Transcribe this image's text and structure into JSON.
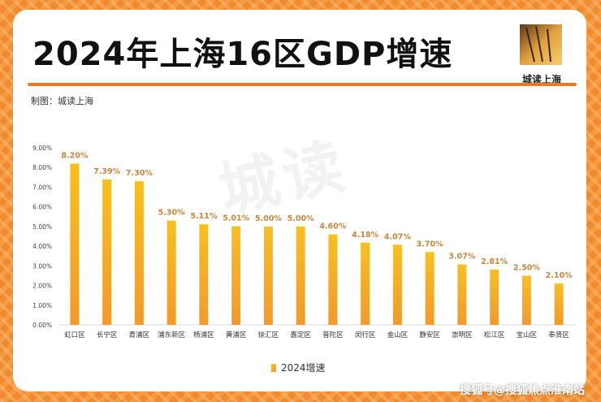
{
  "title": "2024年上海16区GDP增速",
  "credit": "制图：城读上海",
  "logo_text": "城读上海",
  "watermark": "城读",
  "footer": "搜狐号@搜狐焦点淮南站",
  "colors": {
    "border": "#f08a2c",
    "rule": "#e8782a",
    "bar_top": "#f6c020",
    "bar_bottom": "#f29a2c",
    "label": "#c8863a"
  },
  "chart_data": {
    "type": "bar",
    "categories": [
      "虹口区",
      "长宁区",
      "青浦区",
      "浦东新区",
      "杨浦区",
      "黄浦区",
      "徐汇区",
      "嘉定区",
      "普陀区",
      "闵行区",
      "金山区",
      "静安区",
      "崇明区",
      "松江区",
      "宝山区",
      "奉贤区"
    ],
    "series": [
      {
        "name": "2024增速",
        "values": [
          8.2,
          7.39,
          7.3,
          5.3,
          5.11,
          5.01,
          5.0,
          5.0,
          4.6,
          4.18,
          4.07,
          3.7,
          3.07,
          2.81,
          2.5,
          2.1
        ],
        "labels": [
          "8.20%",
          "7.39%",
          "7.30%",
          "5.30%",
          "5.11%",
          "5.01%",
          "5.00%",
          "5.00%",
          "4.60%",
          "4.18%",
          "4.07%",
          "3.70%",
          "3.07%",
          "2.81%",
          "2.50%",
          "2.10%"
        ]
      }
    ],
    "ylim": [
      0,
      9
    ],
    "yticks": [
      "0.00%",
      "1.00%",
      "2.00%",
      "3.00%",
      "4.00%",
      "5.00%",
      "6.00%",
      "7.00%",
      "8.00%",
      "9.00%"
    ],
    "legend_position": "bottom",
    "grid": false
  }
}
